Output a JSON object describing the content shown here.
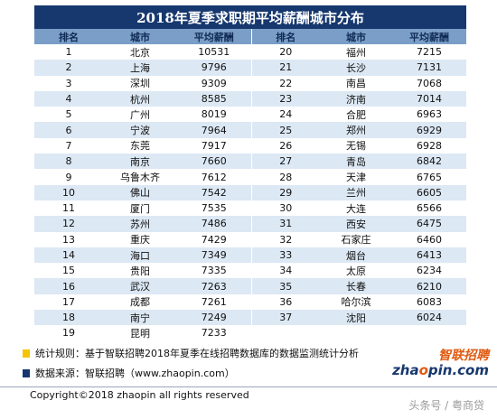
{
  "title": "2018年夏季求职期平均薪酬城市分布",
  "headers": [
    "排名",
    "城市",
    "平均薪酬",
    "排名",
    "城市",
    "平均薪酬"
  ],
  "left_rows": [
    {
      "rank": "1",
      "city": "北京",
      "salary": "10531"
    },
    {
      "rank": "2",
      "city": "上海",
      "salary": "9796"
    },
    {
      "rank": "3",
      "city": "深圳",
      "salary": "9309"
    },
    {
      "rank": "4",
      "city": "杭州",
      "salary": "8585"
    },
    {
      "rank": "5",
      "city": "广州",
      "salary": "8019"
    },
    {
      "rank": "6",
      "city": "宁波",
      "salary": "7964"
    },
    {
      "rank": "7",
      "city": "东莞",
      "salary": "7917"
    },
    {
      "rank": "8",
      "city": "南京",
      "salary": "7660"
    },
    {
      "rank": "9",
      "city": "乌鲁木齐",
      "salary": "7612"
    },
    {
      "rank": "10",
      "city": "佛山",
      "salary": "7542"
    },
    {
      "rank": "11",
      "city": "厦门",
      "salary": "7535"
    },
    {
      "rank": "12",
      "city": "苏州",
      "salary": "7486"
    },
    {
      "rank": "13",
      "city": "重庆",
      "salary": "7429"
    },
    {
      "rank": "14",
      "city": "海口",
      "salary": "7349"
    },
    {
      "rank": "15",
      "city": "贵阳",
      "salary": "7335"
    },
    {
      "rank": "16",
      "city": "武汉",
      "salary": "7263"
    },
    {
      "rank": "17",
      "city": "成都",
      "salary": "7261"
    },
    {
      "rank": "18",
      "city": "南宁",
      "salary": "7249"
    },
    {
      "rank": "19",
      "city": "昆明",
      "salary": "7233"
    }
  ],
  "right_rows": [
    {
      "rank": "20",
      "city": "福州",
      "salary": "7215"
    },
    {
      "rank": "21",
      "city": "长沙",
      "salary": "7131"
    },
    {
      "rank": "22",
      "city": "南昌",
      "salary": "7068"
    },
    {
      "rank": "23",
      "city": "济南",
      "salary": "7014"
    },
    {
      "rank": "24",
      "city": "合肥",
      "salary": "6963"
    },
    {
      "rank": "25",
      "city": "郑州",
      "salary": "6929"
    },
    {
      "rank": "26",
      "city": "无锡",
      "salary": "6928"
    },
    {
      "rank": "27",
      "city": "青岛",
      "salary": "6842"
    },
    {
      "rank": "28",
      "city": "天津",
      "salary": "6765"
    },
    {
      "rank": "29",
      "city": "兰州",
      "salary": "6605"
    },
    {
      "rank": "30",
      "city": "大连",
      "salary": "6566"
    },
    {
      "rank": "31",
      "city": "西安",
      "salary": "6475"
    },
    {
      "rank": "32",
      "city": "石家庄",
      "salary": "6460"
    },
    {
      "rank": "33",
      "city": "烟台",
      "salary": "6413"
    },
    {
      "rank": "34",
      "city": "太原",
      "salary": "6234"
    },
    {
      "rank": "35",
      "city": "长春",
      "salary": "6210"
    },
    {
      "rank": "36",
      "city": "哈尔滨",
      "salary": "6083"
    },
    {
      "rank": "37",
      "city": "沈阳",
      "salary": "6024"
    },
    {
      "rank": "",
      "city": "",
      "salary": ""
    }
  ],
  "notes": {
    "stat_rule": "统计规则：基于智联招聘2018年夏季在线招聘数据库的数据监测统计分析",
    "source": "数据来源：智联招聘（www.zhaopin.com）"
  },
  "brand": {
    "cn": "智联招聘",
    "en_pre": "zha",
    "en_o": "o",
    "en_post": "pin.com"
  },
  "copyright": "Copyright©2018 zhaopin all rights reserved",
  "watermark": "头条号 / 粤商贷",
  "colors": {
    "title_bg": "#17386e",
    "header_bg": "#7a9ec7",
    "stripe": "#dce8f4",
    "brand_orange": "#e05a10",
    "note_yellow": "#f5c400"
  }
}
